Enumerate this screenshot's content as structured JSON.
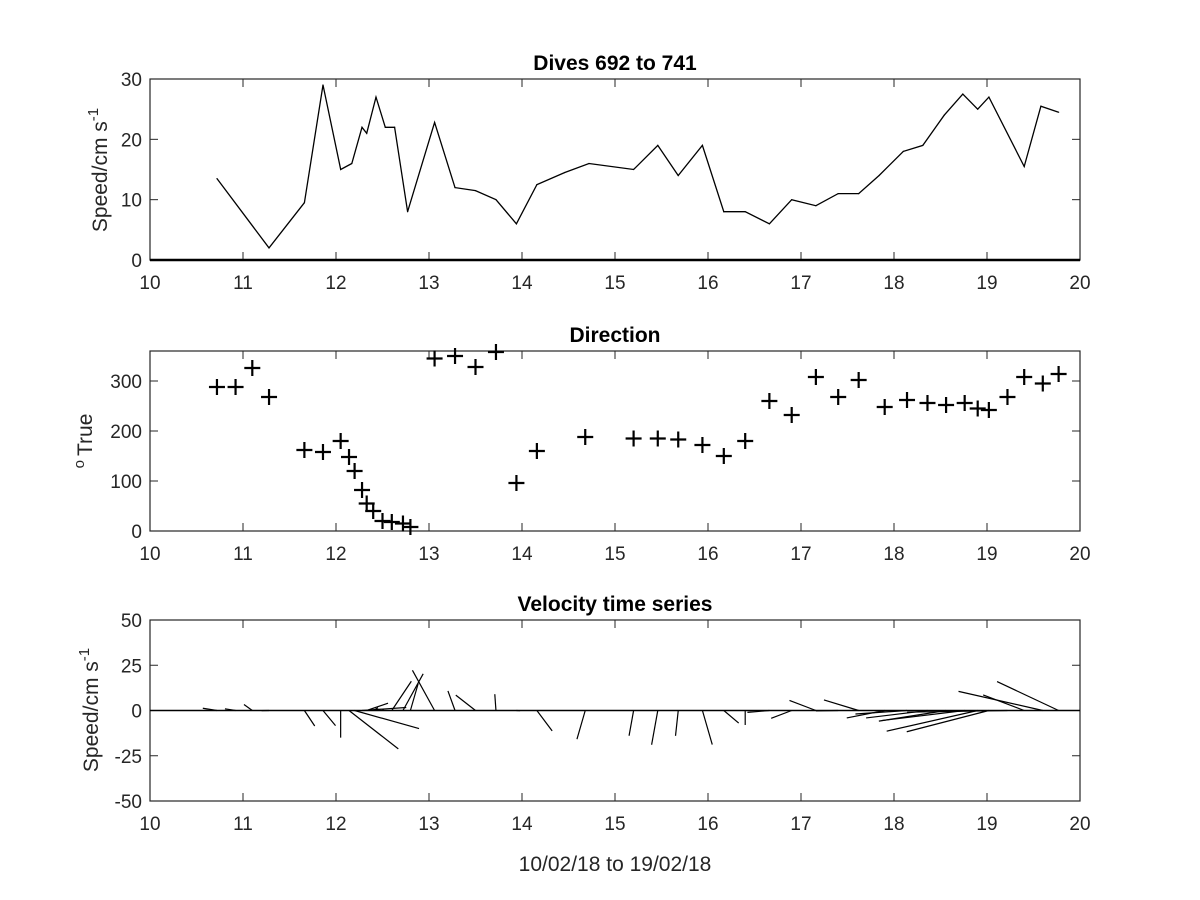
{
  "chart_data": [
    {
      "type": "line",
      "title": "Dives 692 to 741",
      "xlabel": "",
      "ylabel": "Speed/cm s",
      "ylabel_superscript": "-1",
      "xlim": [
        10,
        20
      ],
      "ylim": [
        0,
        30
      ],
      "x_ticks": [
        "10",
        "11",
        "12",
        "13",
        "14",
        "15",
        "16",
        "17",
        "18",
        "19",
        "20"
      ],
      "y_ticks": [
        "0",
        "10",
        "20",
        "30"
      ],
      "grid": false,
      "color": "#000000",
      "x": [
        10.72,
        11.28,
        11.66,
        11.86,
        12.05,
        12.17,
        12.28,
        12.33,
        12.43,
        12.53,
        12.63,
        12.77,
        13.06,
        13.28,
        13.5,
        13.72,
        13.94,
        14.16,
        14.46,
        14.72,
        15.2,
        15.46,
        15.68,
        15.94,
        16.17,
        16.4,
        16.66,
        16.9,
        17.16,
        17.4,
        17.62,
        17.84,
        18.1,
        18.31,
        18.54,
        18.74,
        18.9,
        19.02,
        19.4,
        19.58,
        19.77
      ],
      "y": [
        13.5,
        2,
        9.5,
        29,
        15,
        16,
        22,
        21,
        27,
        22,
        22,
        8,
        22.8,
        12,
        11.5,
        10,
        6,
        12.5,
        14.5,
        16,
        15,
        19,
        14,
        19,
        8,
        8,
        6,
        10,
        9,
        11,
        11,
        14,
        18,
        19,
        24,
        27.5,
        25,
        27,
        15.5,
        25.5,
        24.5
      ]
    },
    {
      "type": "scatter",
      "title": "Direction",
      "xlabel": "",
      "ylabel": "True",
      "ylabel_superscript": "o",
      "xlim": [
        10,
        20
      ],
      "ylim": [
        0,
        360
      ],
      "x_ticks": [
        "10",
        "11",
        "12",
        "13",
        "14",
        "15",
        "16",
        "17",
        "18",
        "19",
        "20"
      ],
      "y_ticks": [
        "0",
        "100",
        "200",
        "300"
      ],
      "grid": false,
      "marker": "+",
      "color": "#000000",
      "x": [
        10.72,
        10.92,
        11.1,
        11.28,
        11.66,
        11.86,
        12.05,
        12.14,
        12.2,
        12.28,
        12.33,
        12.4,
        12.5,
        12.6,
        12.72,
        12.8,
        13.06,
        13.28,
        13.5,
        13.72,
        13.94,
        14.16,
        14.68,
        15.2,
        15.46,
        15.68,
        15.94,
        16.17,
        16.4,
        16.66,
        16.9,
        17.16,
        17.4,
        17.62,
        17.9,
        18.14,
        18.36,
        18.56,
        18.76,
        18.9,
        19.02,
        19.22,
        19.4,
        19.6,
        19.77
      ],
      "y": [
        288,
        288,
        326,
        268,
        162,
        158,
        180,
        148,
        120,
        82,
        55,
        40,
        20,
        18,
        15,
        8,
        345,
        350,
        328,
        358,
        96,
        160,
        188,
        185,
        185,
        183,
        172,
        150,
        180,
        260,
        232,
        308,
        268,
        302,
        248,
        262,
        256,
        252,
        256,
        245,
        242,
        268,
        308,
        295,
        314
      ]
    },
    {
      "type": "vector",
      "title": "Velocity time series",
      "xlabel": "10/02/18 to 19/02/18",
      "ylabel": "Speed/cm s",
      "ylabel_superscript": "-1",
      "xlim": [
        10,
        20
      ],
      "ylim": [
        -50,
        50
      ],
      "x_ticks": [
        "10",
        "11",
        "12",
        "13",
        "14",
        "15",
        "16",
        "17",
        "18",
        "19",
        "20"
      ],
      "y_ticks": [
        "-50",
        "-25",
        "0",
        "25",
        "50"
      ],
      "grid": false,
      "color": "#000000",
      "x": [
        10.72,
        10.92,
        11.1,
        11.28,
        11.66,
        11.86,
        12.05,
        12.14,
        12.2,
        12.28,
        12.33,
        12.4,
        12.5,
        12.6,
        12.72,
        12.8,
        13.06,
        13.28,
        13.5,
        13.72,
        13.94,
        14.16,
        14.68,
        15.2,
        15.46,
        15.68,
        15.94,
        16.17,
        16.4,
        16.66,
        16.9,
        17.16,
        17.4,
        17.62,
        17.9,
        18.14,
        18.36,
        18.56,
        18.76,
        18.9,
        19.02,
        19.22,
        19.4,
        19.6,
        19.77
      ],
      "speed": [
        4,
        3,
        4,
        2,
        9,
        9,
        15,
        25,
        20,
        12,
        7,
        2,
        1,
        17,
        21,
        15,
        23,
        11,
        10,
        9,
        1,
        12,
        16,
        14,
        19,
        14,
        19,
        8,
        8,
        6,
        7,
        9,
        6,
        11,
        11,
        14,
        17,
        19,
        23,
        27,
        25,
        27,
        14,
        25,
        23
      ],
      "direction_deg": [
        288,
        288,
        326,
        268,
        162,
        158,
        180,
        148,
        120,
        82,
        55,
        40,
        20,
        18,
        15,
        8,
        345,
        350,
        328,
        358,
        96,
        160,
        188,
        185,
        185,
        183,
        172,
        150,
        180,
        260,
        232,
        308,
        268,
        302,
        248,
        262,
        256,
        252,
        256,
        245,
        242,
        268,
        308,
        295,
        314
      ]
    }
  ]
}
